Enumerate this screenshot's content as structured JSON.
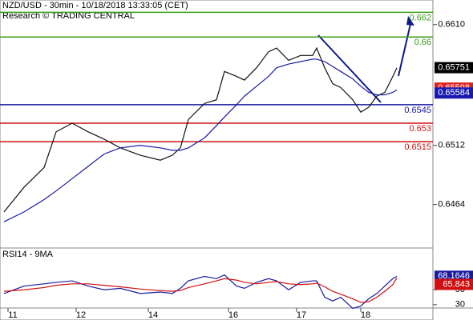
{
  "chart_data": [
    {
      "type": "line",
      "title": "NZD/USD - 30min - 10/18/2018 13:33:05 (CET)",
      "subtitle": "Research © TRADING CENTRAL",
      "x": [
        1,
        6,
        11,
        14,
        18,
        22,
        26,
        30,
        35,
        40,
        43,
        45,
        47,
        51,
        54,
        56,
        59,
        61,
        64,
        67,
        69,
        72,
        75,
        78,
        79,
        81,
        83,
        85,
        88,
        90,
        92,
        94,
        96,
        98,
        99
      ],
      "xlim": [
        0,
        108
      ],
      "xticks": [
        {
          "value": 2,
          "label": "11"
        },
        {
          "value": 19,
          "label": "12"
        },
        {
          "value": 37,
          "label": "14"
        },
        {
          "value": 57,
          "label": "16"
        },
        {
          "value": 74,
          "label": "17"
        },
        {
          "value": 90,
          "label": "18"
        }
      ],
      "series": [
        {
          "color": "#111111",
          "values": [
            0.6458,
            0.6478,
            0.6494,
            0.6523,
            0.653,
            0.6523,
            0.6517,
            0.651,
            0.6504,
            0.65,
            0.6504,
            0.651,
            0.6533,
            0.6546,
            0.6549,
            0.6572,
            0.6568,
            0.6565,
            0.6575,
            0.6588,
            0.6591,
            0.6581,
            0.6585,
            0.6585,
            0.6591,
            0.6575,
            0.6562,
            0.6559,
            0.6549,
            0.6539,
            0.6543,
            0.6552,
            0.6555,
            0.6568,
            0.6575
          ]
        },
        {
          "color": "#1a1aa0",
          "values": [
            0.645,
            0.6458,
            0.6468,
            0.6475,
            0.6485,
            0.6495,
            0.6505,
            0.651,
            0.6512,
            0.651,
            0.6508,
            0.6508,
            0.651,
            0.6518,
            0.6528,
            0.6535,
            0.6545,
            0.6552,
            0.656,
            0.6568,
            0.6575,
            0.6578,
            0.658,
            0.6582,
            0.6582,
            0.658,
            0.6576,
            0.6572,
            0.6566,
            0.656,
            0.6555,
            0.6553,
            0.6553,
            0.6555,
            0.6557
          ]
        }
      ],
      "ylim": [
        0.643,
        0.663
      ],
      "yticks": [
        {
          "value": 0.661,
          "label": "0.6610"
        },
        {
          "value": 0.6512,
          "label": "0.6512"
        },
        {
          "value": 0.6464,
          "label": "0.6464"
        }
      ],
      "levels": [
        {
          "value": 0.662,
          "label": "0.662",
          "color": "#3a9a1a"
        },
        {
          "value": 0.66,
          "label": "0.66",
          "color": "#3a9a1a"
        },
        {
          "value": 0.6545,
          "label": "0.6545",
          "color": "#1a1aa0"
        },
        {
          "value": 0.653,
          "label": "0.653",
          "color": "#d01010"
        },
        {
          "value": 0.6515,
          "label": "0.6515",
          "color": "#d01010"
        }
      ],
      "tags": [
        {
          "value": 0.65751,
          "label": "0.65751",
          "color": "#000000"
        },
        {
          "value": 0.65598,
          "label": "0.65598",
          "color": "#e02020"
        },
        {
          "value": 0.65584,
          "label": "0.65584",
          "color": "#1a1ab0"
        }
      ]
    },
    {
      "type": "line",
      "title": "RSI14 - 9MA",
      "x": [
        1,
        6,
        11,
        14,
        18,
        22,
        26,
        30,
        35,
        40,
        43,
        45,
        47,
        51,
        54,
        56,
        59,
        61,
        64,
        67,
        69,
        72,
        75,
        78,
        79,
        81,
        83,
        85,
        88,
        90,
        92,
        94,
        96,
        98,
        99
      ],
      "xlim": [
        0,
        108
      ],
      "series": [
        {
          "color": "#1a1aa0",
          "values": [
            45,
            55,
            58,
            60,
            62,
            55,
            50,
            52,
            45,
            47,
            45,
            52,
            62,
            68,
            65,
            70,
            55,
            52,
            60,
            65,
            62,
            50,
            60,
            62,
            62,
            40,
            35,
            40,
            25,
            28,
            38,
            45,
            55,
            65,
            68.1646
          ]
        },
        {
          "color": "#d01010",
          "values": [
            48,
            50,
            53,
            56,
            58,
            58,
            56,
            54,
            51,
            49,
            48,
            49,
            53,
            58,
            62,
            65,
            63,
            60,
            58,
            60,
            61,
            58,
            57,
            58,
            59,
            54,
            48,
            44,
            38,
            33,
            34,
            40,
            48,
            57,
            65.843
          ]
        }
      ],
      "ylim": [
        18,
        104
      ],
      "yticks": [
        30,
        50
      ],
      "tags": [
        {
          "value": 68.1646,
          "label": "68.1646",
          "color": "#1a1aa0"
        },
        {
          "value": 65.843,
          "label": "65.843",
          "color": "#d01010"
        }
      ]
    }
  ]
}
